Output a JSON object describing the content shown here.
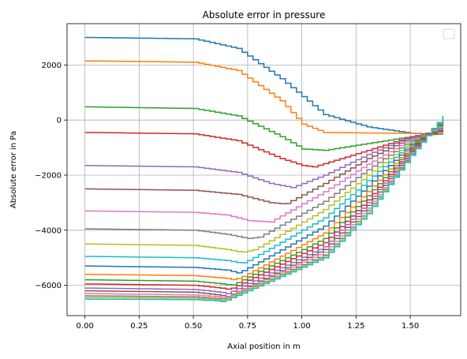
{
  "chart_data": {
    "type": "line",
    "title": "Absolute error in pressure",
    "xlabel": "Axial position in m",
    "ylabel": "Absolute error in Pa",
    "xlim": [
      -0.0825,
      1.7325
    ],
    "ylim": [
      -7100,
      3500
    ],
    "xticks": [
      0.0,
      0.25,
      0.5,
      0.75,
      1.0,
      1.25,
      1.5
    ],
    "xtick_labels": [
      "0.00",
      "0.25",
      "0.50",
      "0.75",
      "1.00",
      "1.25",
      "1.50"
    ],
    "yticks": [
      -6000,
      -4000,
      -2000,
      0,
      2000
    ],
    "ytick_labels": [
      "−6000",
      "−4000",
      "−2000",
      "0",
      "2000"
    ],
    "grid": true,
    "legend": "upper right, empty",
    "step_style": "steps",
    "x_range": [
      0.0,
      1.65
    ],
    "colors": [
      "#1f77b4",
      "#ff7f0e",
      "#2ca02c",
      "#d62728",
      "#9467bd",
      "#8c564b",
      "#e377c2",
      "#7f7f7f",
      "#bcbd22",
      "#17becf"
    ],
    "series": [
      {
        "x": [
          0.0,
          0.5,
          0.7,
          0.9,
          1.1,
          1.3,
          1.5,
          1.6,
          1.65
        ],
        "y": [
          3000,
          2950,
          2600,
          1500,
          200,
          -250,
          -480,
          -500,
          -520
        ]
      },
      {
        "x": [
          0.0,
          0.5,
          0.7,
          0.9,
          1.0,
          1.1,
          1.3,
          1.5,
          1.65
        ],
        "y": [
          2150,
          2100,
          1800,
          700,
          -150,
          -450,
          -470,
          -480,
          -520
        ]
      },
      {
        "x": [
          0.0,
          0.5,
          0.7,
          0.9,
          1.0,
          1.1,
          1.3,
          1.5,
          1.65
        ],
        "y": [
          480,
          420,
          150,
          -600,
          -1050,
          -1100,
          -850,
          -600,
          -480
        ]
      },
      {
        "x": [
          0.0,
          0.5,
          0.7,
          0.9,
          1.0,
          1.05,
          1.3,
          1.5,
          1.65
        ],
        "y": [
          -450,
          -500,
          -750,
          -1400,
          -1650,
          -1700,
          -1100,
          -600,
          -400
        ]
      },
      {
        "x": [
          0.0,
          0.5,
          0.7,
          0.85,
          0.95,
          1.1,
          1.3,
          1.5,
          1.65
        ],
        "y": [
          -1650,
          -1700,
          -1900,
          -2300,
          -2450,
          -2000,
          -1250,
          -600,
          -350
        ]
      },
      {
        "x": [
          0.0,
          0.5,
          0.7,
          0.85,
          0.92,
          1.1,
          1.3,
          1.5,
          1.65
        ],
        "y": [
          -2500,
          -2550,
          -2700,
          -3000,
          -3050,
          -2300,
          -1400,
          -650,
          -300
        ]
      },
      {
        "x": [
          0.0,
          0.5,
          0.65,
          0.75,
          0.85,
          1.1,
          1.3,
          1.5,
          1.65
        ],
        "y": [
          -3300,
          -3350,
          -3450,
          -3650,
          -3700,
          -2600,
          -1600,
          -700,
          -250
        ]
      },
      {
        "x": [
          0.0,
          0.5,
          0.65,
          0.75,
          0.8,
          1.1,
          1.3,
          1.5,
          1.65
        ],
        "y": [
          -3950,
          -4000,
          -4150,
          -4300,
          -4250,
          -2950,
          -1800,
          -750,
          -200
        ]
      },
      {
        "x": [
          0.0,
          0.5,
          0.65,
          0.72,
          0.78,
          1.1,
          1.3,
          1.5,
          1.65
        ],
        "y": [
          -4500,
          -4550,
          -4700,
          -4800,
          -4700,
          -3250,
          -2000,
          -800,
          -150
        ]
      },
      {
        "x": [
          0.0,
          0.5,
          0.65,
          0.72,
          0.75,
          1.1,
          1.3,
          1.5,
          1.65
        ],
        "y": [
          -4950,
          -5000,
          -5100,
          -5200,
          -5100,
          -3550,
          -2200,
          -850,
          -100
        ]
      },
      {
        "x": [
          0.0,
          0.5,
          0.65,
          0.7,
          0.73,
          1.1,
          1.3,
          1.5,
          1.65
        ],
        "y": [
          -5300,
          -5350,
          -5450,
          -5550,
          -5450,
          -3850,
          -2400,
          -900,
          -50
        ]
      },
      {
        "x": [
          0.0,
          0.5,
          0.65,
          0.68,
          0.72,
          1.1,
          1.3,
          1.5,
          1.65
        ],
        "y": [
          -5600,
          -5650,
          -5750,
          -5800,
          -5700,
          -4100,
          -2600,
          -950,
          0
        ]
      },
      {
        "x": [
          0.0,
          0.5,
          0.63,
          0.67,
          0.7,
          1.1,
          1.3,
          1.5,
          1.65
        ],
        "y": [
          -5800,
          -5850,
          -5950,
          -6000,
          -5900,
          -4300,
          -2750,
          -1000,
          30
        ]
      },
      {
        "x": [
          0.0,
          0.5,
          0.62,
          0.66,
          0.69,
          1.1,
          1.3,
          1.5,
          1.65
        ],
        "y": [
          -5950,
          -6000,
          -6100,
          -6150,
          -6050,
          -4450,
          -2900,
          -1050,
          60
        ]
      },
      {
        "x": [
          0.0,
          0.5,
          0.62,
          0.65,
          0.68,
          1.1,
          1.3,
          1.5,
          1.65
        ],
        "y": [
          -6100,
          -6150,
          -6250,
          -6300,
          -6200,
          -4600,
          -3000,
          -1100,
          80
        ]
      },
      {
        "x": [
          0.0,
          0.5,
          0.61,
          0.65,
          0.68,
          1.1,
          1.3,
          1.5,
          1.65
        ],
        "y": [
          -6200,
          -6250,
          -6350,
          -6400,
          -6300,
          -4700,
          -3100,
          -1150,
          100
        ]
      },
      {
        "x": [
          0.0,
          0.5,
          0.61,
          0.64,
          0.67,
          1.1,
          1.3,
          1.5,
          1.65
        ],
        "y": [
          -6300,
          -6350,
          -6420,
          -6450,
          -6350,
          -4800,
          -3200,
          -1200,
          110
        ]
      },
      {
        "x": [
          0.0,
          0.5,
          0.6,
          0.64,
          0.67,
          1.1,
          1.3,
          1.5,
          1.65
        ],
        "y": [
          -6380,
          -6420,
          -6480,
          -6500,
          -6400,
          -4900,
          -3280,
          -1230,
          120
        ]
      },
      {
        "x": [
          0.0,
          0.5,
          0.6,
          0.63,
          0.66,
          1.1,
          1.3,
          1.5,
          1.65
        ],
        "y": [
          -6440,
          -6470,
          -6520,
          -6550,
          -6450,
          -4950,
          -3350,
          -1260,
          130
        ]
      },
      {
        "x": [
          0.0,
          0.5,
          0.6,
          0.63,
          0.66,
          1.1,
          1.3,
          1.5,
          1.65
        ],
        "y": [
          -6500,
          -6520,
          -6560,
          -6600,
          -6500,
          -5000,
          -3400,
          -1280,
          150
        ]
      }
    ]
  }
}
